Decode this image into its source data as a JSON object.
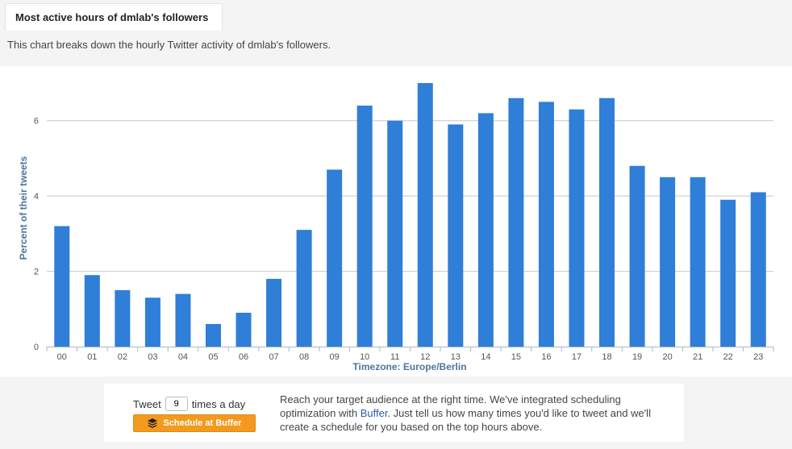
{
  "tab_title": "Most active hours of dmlab's followers",
  "description": "This chart breaks down the hourly Twitter activity of dmlab's followers.",
  "chart_data": {
    "type": "bar",
    "categories": [
      "00",
      "01",
      "02",
      "03",
      "04",
      "05",
      "06",
      "07",
      "08",
      "09",
      "10",
      "11",
      "12",
      "13",
      "14",
      "15",
      "16",
      "17",
      "18",
      "19",
      "20",
      "21",
      "22",
      "23"
    ],
    "values": [
      3.2,
      1.9,
      1.5,
      1.3,
      1.4,
      0.6,
      0.9,
      1.8,
      3.1,
      4.7,
      6.4,
      6.0,
      7.0,
      5.9,
      6.2,
      6.6,
      6.5,
      6.3,
      6.6,
      4.8,
      4.5,
      4.5,
      3.9,
      4.1
    ],
    "xlabel": "Timezone: Europe/Berlin",
    "ylabel": "Percent of their tweets",
    "ylim": [
      0,
      7.0
    ],
    "yticks": [
      "0",
      "2",
      "4",
      "6"
    ],
    "grid": true,
    "bar_color": "#2f7ed8"
  },
  "cta": {
    "tweet_label_pre": "Tweet",
    "tweet_count": "9",
    "tweet_label_post": "times a day",
    "button_label": "Schedule at Buffer",
    "text_before_link": "Reach your target audience at the right time. We've integrated scheduling optimization with ",
    "link_text": "Buffer",
    "text_after_link": ". Just tell us how many times you'd like to tweet and we'll create a schedule for you based on the top hours above."
  }
}
